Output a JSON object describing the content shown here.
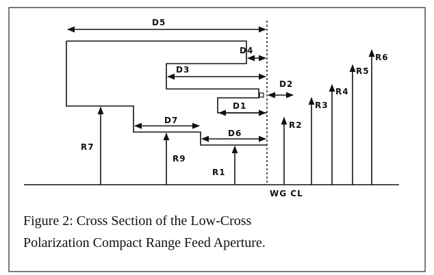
{
  "labels": {
    "d5": "D5",
    "d4": "D4",
    "d3": "D3",
    "d2": "D2",
    "d1": "D1",
    "d7": "D7",
    "d6": "D6",
    "r7": "R7",
    "r9": "R9",
    "r1": "R1",
    "r2": "R2",
    "r3": "R3",
    "r4": "R4",
    "r5": "R5",
    "r6": "R6",
    "wgcl": "WG CL"
  },
  "caption": [
    "Figure 2: Cross Section of the Low-Cross",
    "Polarization Compact Range Feed Aperture."
  ]
}
